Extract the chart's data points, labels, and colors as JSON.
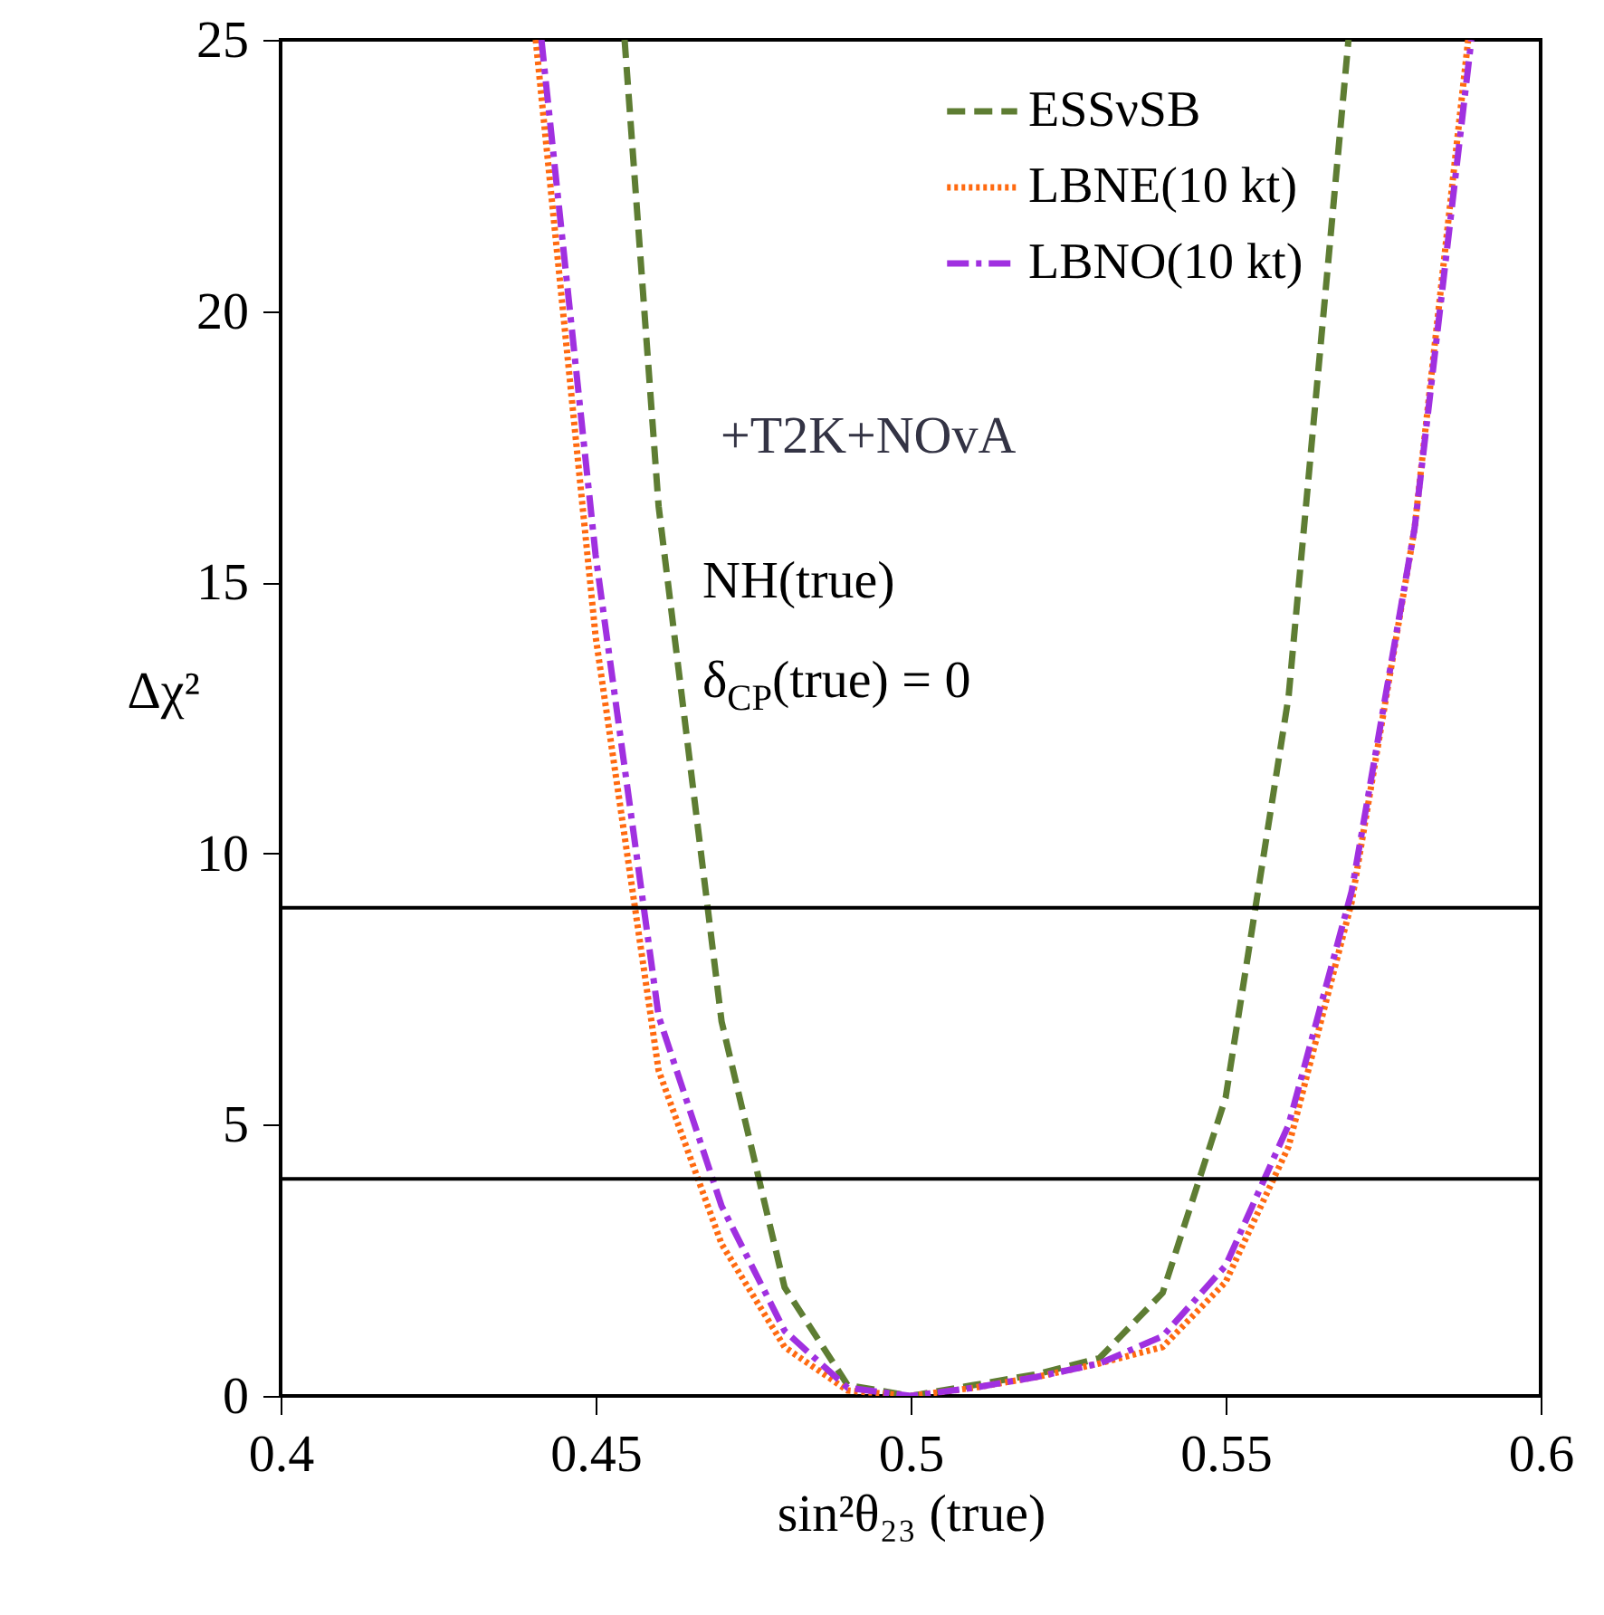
{
  "chart_data": {
    "type": "line",
    "xlabel": "sin²θ₂₃ (true)",
    "ylabel": "Δχ²",
    "annotations": [
      "+T2K+NOvA",
      "NH(true)",
      "δ$_{CP}$(true) = 0"
    ],
    "xlim": [
      0.4,
      0.6
    ],
    "xticks": [
      0.4,
      0.45,
      0.5,
      0.55,
      0.6
    ],
    "ylim": [
      0,
      25
    ],
    "yticks": [
      0,
      5,
      10,
      15,
      20,
      25
    ],
    "grid": false,
    "legend": "top right",
    "marker": "none",
    "ref_lines": [
      {
        "axis": "y",
        "value": 9,
        "color": "#000000"
      },
      {
        "axis": "y",
        "value": 4,
        "color": "#000000"
      }
    ],
    "series": [
      {
        "name": "ESSνSB",
        "color": "#5e7d33",
        "line_style": "dashed",
        "x": [
          0.4546,
          0.46,
          0.47,
          0.48,
          0.49,
          0.5,
          0.51,
          0.52,
          0.53,
          0.54,
          0.55,
          0.56,
          0.5695
        ],
        "values": [
          25,
          16.4,
          6.9,
          2.0,
          0.2,
          0,
          0.2,
          0.4,
          0.7,
          1.9,
          5.5,
          12.9,
          25
        ]
      },
      {
        "name": "LBNE(10 kt)",
        "color": "#ff6a10",
        "line_style": "dotted",
        "x": [
          0.4405,
          0.45,
          0.46,
          0.47,
          0.48,
          0.49,
          0.5,
          0.51,
          0.52,
          0.53,
          0.54,
          0.55,
          0.56,
          0.57,
          0.58,
          0.5885
        ],
        "values": [
          25,
          14,
          6.0,
          2.8,
          0.9,
          0.1,
          0,
          0.15,
          0.35,
          0.6,
          0.9,
          2.1,
          4.6,
          9.1,
          16,
          25
        ]
      },
      {
        "name": "LBNO(10 kt)",
        "color": "#a030e0",
        "line_style": "dashdot",
        "x": [
          0.4414,
          0.45,
          0.46,
          0.47,
          0.48,
          0.49,
          0.5,
          0.51,
          0.52,
          0.53,
          0.54,
          0.55,
          0.56,
          0.57,
          0.58,
          0.589
        ],
        "values": [
          25,
          15.5,
          7.0,
          3.5,
          1.2,
          0.15,
          0,
          0.15,
          0.35,
          0.6,
          1.1,
          2.4,
          5.0,
          9.3,
          16,
          25
        ]
      }
    ]
  }
}
